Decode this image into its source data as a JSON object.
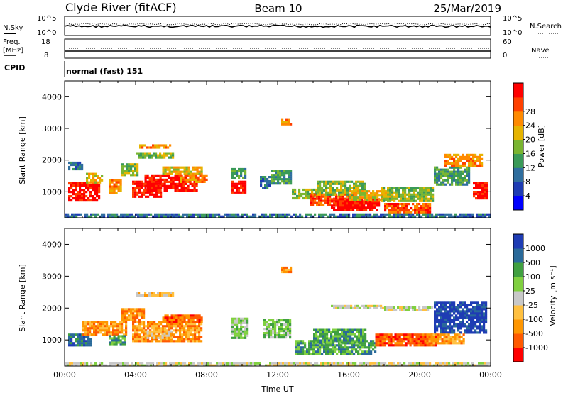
{
  "header": {
    "site": "Clyde River (fitACF)",
    "beam": "Beam 10",
    "date": "25/Mar/2019"
  },
  "noise_panel": {
    "left_label": "N.Sky",
    "right_label": "N.Search",
    "left_ticks": [
      "10^5",
      "10^0"
    ],
    "right_ticks": [
      "10^5",
      "10^0"
    ]
  },
  "freq_panel": {
    "left_label": "Freq.",
    "left_units": "[MHz]",
    "right_label": "Nave",
    "left_ticks": [
      "18",
      "8"
    ],
    "right_ticks": [
      "60",
      "0"
    ]
  },
  "cpid": {
    "label": "CPID",
    "value": "normal (fast) 151"
  },
  "colors": {
    "power": [
      "#0000ff",
      "#1e3cb4",
      "#2f6e9e",
      "#3a9a58",
      "#7ab530",
      "#e6b400",
      "#ff8a00",
      "#ff4000",
      "#ff0000"
    ],
    "velocity": [
      "#ff0000",
      "#ff5a00",
      "#ff9600",
      "#ffc040",
      "#c8c8c8",
      "#80d040",
      "#40a040",
      "#2a6a9a",
      "#1e3cb4"
    ]
  },
  "chart_data": [
    {
      "type": "heatmap",
      "name": "power",
      "ylabel": "Slant Range [km]",
      "xlabel": "",
      "ylim": [
        180,
        4500
      ],
      "xlim": [
        0,
        24
      ],
      "yticks": [
        1000,
        2000,
        3000,
        4000
      ],
      "ytick_labels": [
        "1000",
        "2000",
        "3000",
        "4000"
      ],
      "colorbar_label": "Power [dB]",
      "colorbar_ticks": [
        "4",
        "8",
        "12",
        "16",
        "20",
        "24",
        "28"
      ],
      "regions": [
        {
          "x0": 0.2,
          "x1": 2.0,
          "y0": 700,
          "y1": 1300,
          "level": 8
        },
        {
          "x0": 1.2,
          "x1": 2.2,
          "y0": 1250,
          "y1": 1600,
          "level": 5
        },
        {
          "x0": 0.2,
          "x1": 1.0,
          "y0": 1700,
          "y1": 1950,
          "level": 2
        },
        {
          "x0": 2.5,
          "x1": 3.2,
          "y0": 900,
          "y1": 1400,
          "level": 6
        },
        {
          "x0": 3.2,
          "x1": 4.2,
          "y0": 1500,
          "y1": 1900,
          "level": 4
        },
        {
          "x0": 3.8,
          "x1": 5.5,
          "y0": 800,
          "y1": 1350,
          "level": 8
        },
        {
          "x0": 4.5,
          "x1": 7.5,
          "y0": 1000,
          "y1": 1550,
          "level": 8
        },
        {
          "x0": 5.5,
          "x1": 7.8,
          "y0": 1550,
          "y1": 1800,
          "level": 5
        },
        {
          "x0": 6.5,
          "x1": 8.0,
          "y0": 1300,
          "y1": 1550,
          "level": 6
        },
        {
          "x0": 4.0,
          "x1": 6.2,
          "y0": 2050,
          "y1": 2250,
          "level": 4
        },
        {
          "x0": 4.2,
          "x1": 6.0,
          "y0": 2350,
          "y1": 2500,
          "level": 6
        },
        {
          "x0": 9.4,
          "x1": 10.2,
          "y0": 950,
          "y1": 1350,
          "level": 8
        },
        {
          "x0": 9.4,
          "x1": 10.2,
          "y0": 1400,
          "y1": 1750,
          "level": 3
        },
        {
          "x0": 11.0,
          "x1": 11.6,
          "y0": 1100,
          "y1": 1500,
          "level": 2
        },
        {
          "x0": 11.6,
          "x1": 12.8,
          "y0": 1200,
          "y1": 1700,
          "level": 3
        },
        {
          "x0": 12.2,
          "x1": 12.8,
          "y0": 3100,
          "y1": 3300,
          "level": 6
        },
        {
          "x0": 12.8,
          "x1": 14.2,
          "y0": 750,
          "y1": 1100,
          "level": 4
        },
        {
          "x0": 13.8,
          "x1": 16.5,
          "y0": 550,
          "y1": 950,
          "level": 7
        },
        {
          "x0": 15.0,
          "x1": 17.8,
          "y0": 400,
          "y1": 800,
          "level": 8
        },
        {
          "x0": 14.2,
          "x1": 17.0,
          "y0": 900,
          "y1": 1350,
          "level": 4
        },
        {
          "x0": 16.0,
          "x1": 18.5,
          "y0": 700,
          "y1": 1050,
          "level": 5
        },
        {
          "x0": 17.8,
          "x1": 20.8,
          "y0": 700,
          "y1": 1150,
          "level": 4
        },
        {
          "x0": 18.0,
          "x1": 20.6,
          "y0": 300,
          "y1": 650,
          "level": 7
        },
        {
          "x0": 20.8,
          "x1": 22.8,
          "y0": 1200,
          "y1": 1800,
          "level": 3
        },
        {
          "x0": 21.4,
          "x1": 23.6,
          "y0": 1800,
          "y1": 2200,
          "level": 6
        },
        {
          "x0": 23.0,
          "x1": 23.8,
          "y0": 750,
          "y1": 1300,
          "level": 8
        },
        {
          "x0": 0.0,
          "x1": 24.0,
          "y0": 190,
          "y1": 320,
          "level": 2
        }
      ]
    },
    {
      "type": "heatmap",
      "name": "velocity",
      "ylabel": "Slant Range [km]",
      "xlabel": "Time UT",
      "ylim": [
        180,
        4500
      ],
      "xlim": [
        0,
        24
      ],
      "xticks": [
        0,
        4,
        8,
        12,
        16,
        20,
        24
      ],
      "xtick_labels": [
        "00:00",
        "04:00",
        "08:00",
        "12:00",
        "16:00",
        "20:00",
        "00:00"
      ],
      "yticks": [
        1000,
        2000,
        3000,
        4000
      ],
      "ytick_labels": [
        "1000",
        "2000",
        "3000",
        "4000"
      ],
      "colorbar_label": "Velocity [m s⁻¹]",
      "colorbar_ticks": [
        "-1000",
        "-500",
        "-100",
        "-25",
        "25",
        "100",
        "500",
        "1000"
      ],
      "regions": [
        {
          "x0": 0.2,
          "x1": 1.5,
          "y0": 800,
          "y1": 1200,
          "level": 7
        },
        {
          "x0": 1.0,
          "x1": 3.5,
          "y0": 1100,
          "y1": 1600,
          "level": 2
        },
        {
          "x0": 2.5,
          "x1": 3.5,
          "y0": 800,
          "y1": 1150,
          "level": 6
        },
        {
          "x0": 3.2,
          "x1": 4.5,
          "y0": 1600,
          "y1": 2000,
          "level": 2
        },
        {
          "x0": 3.8,
          "x1": 7.8,
          "y0": 900,
          "y1": 1600,
          "level": 2
        },
        {
          "x0": 4.5,
          "x1": 6.0,
          "y0": 1000,
          "y1": 1300,
          "level": 3
        },
        {
          "x0": 5.5,
          "x1": 7.8,
          "y0": 1550,
          "y1": 1800,
          "level": 1
        },
        {
          "x0": 4.0,
          "x1": 6.2,
          "y0": 2350,
          "y1": 2500,
          "level": 3
        },
        {
          "x0": 9.4,
          "x1": 10.3,
          "y0": 1000,
          "y1": 1700,
          "level": 5
        },
        {
          "x0": 11.2,
          "x1": 12.8,
          "y0": 1050,
          "y1": 1650,
          "level": 5
        },
        {
          "x0": 12.2,
          "x1": 12.8,
          "y0": 3100,
          "y1": 3300,
          "level": 2
        },
        {
          "x0": 13.0,
          "x1": 17.5,
          "y0": 500,
          "y1": 1000,
          "level": 6
        },
        {
          "x0": 14.0,
          "x1": 17.0,
          "y0": 900,
          "y1": 1350,
          "level": 6
        },
        {
          "x0": 17.5,
          "x1": 21.0,
          "y0": 800,
          "y1": 1200,
          "level": 1
        },
        {
          "x0": 15.0,
          "x1": 18.0,
          "y0": 1950,
          "y1": 2100,
          "level": 4
        },
        {
          "x0": 18.0,
          "x1": 20.8,
          "y0": 1900,
          "y1": 2050,
          "level": 4
        },
        {
          "x0": 20.8,
          "x1": 23.8,
          "y0": 1200,
          "y1": 2200,
          "level": 8
        },
        {
          "x0": 20.5,
          "x1": 22.5,
          "y0": 850,
          "y1": 1200,
          "level": 2
        },
        {
          "x0": 0.0,
          "x1": 24.0,
          "y0": 190,
          "y1": 300,
          "level": 4
        }
      ]
    }
  ]
}
